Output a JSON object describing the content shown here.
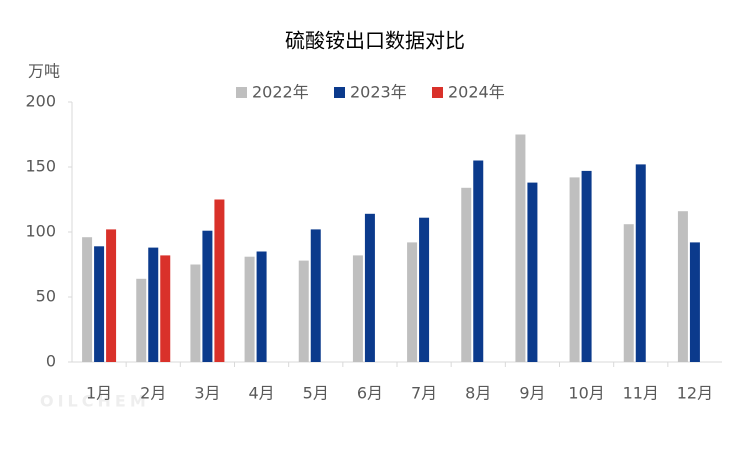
{
  "chart_data": {
    "type": "bar",
    "title": "硫酸铵出口数据对比",
    "y_label": "万吨",
    "watermark": "OILCHEM",
    "categories": [
      "1月",
      "2月",
      "3月",
      "4月",
      "5月",
      "6月",
      "7月",
      "8月",
      "9月",
      "10月",
      "11月",
      "12月"
    ],
    "series": [
      {
        "name": "2022年",
        "color": "#bfbfbf",
        "values": [
          96,
          64,
          75,
          81,
          78,
          82,
          92,
          134,
          175,
          142,
          106,
          116
        ]
      },
      {
        "name": "2023年",
        "color": "#0b3a8c",
        "values": [
          89,
          88,
          101,
          85,
          102,
          114,
          111,
          155,
          138,
          147,
          152,
          92
        ]
      },
      {
        "name": "2024年",
        "color": "#d9312a",
        "values": [
          102,
          82,
          125,
          null,
          null,
          null,
          null,
          null,
          null,
          null,
          null,
          null
        ]
      }
    ],
    "ylim": [
      0,
      200
    ],
    "yticks": [
      0,
      50,
      100,
      150,
      200
    ],
    "grid": false,
    "legend": "top"
  }
}
